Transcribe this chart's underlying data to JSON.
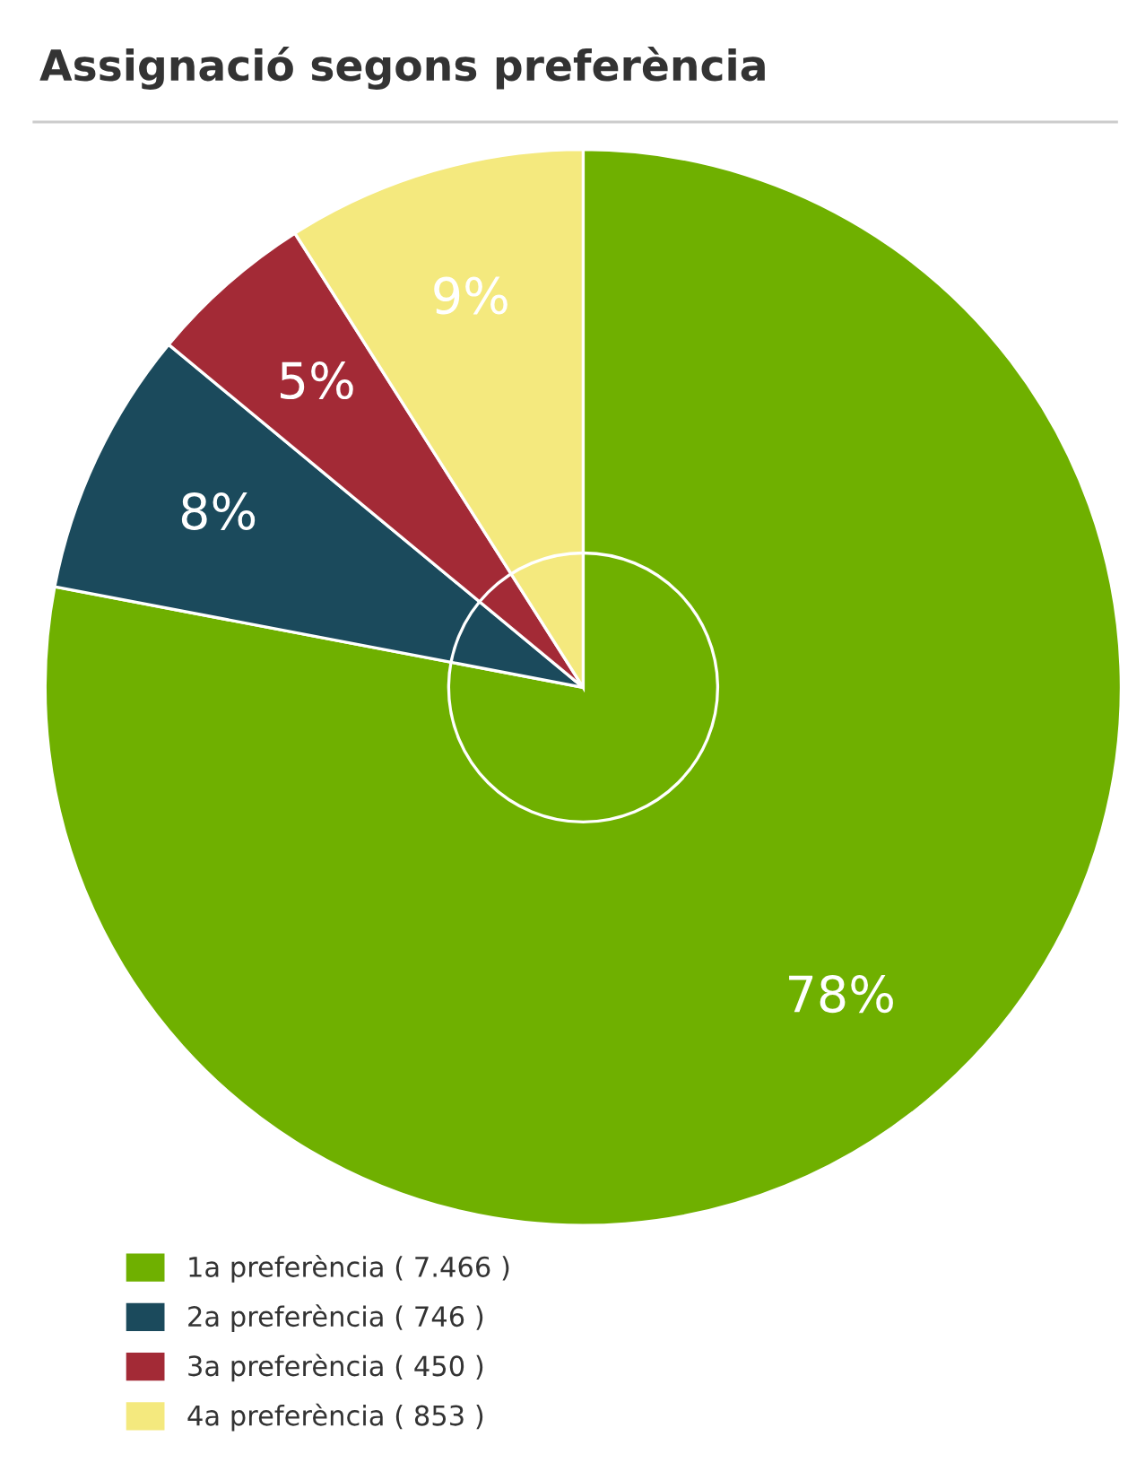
{
  "chart_data": {
    "type": "pie",
    "title": "Assignació segons preferència",
    "categories": [
      "1a preferència ( 7.466 )",
      "2a preferència ( 746 )",
      "3a preferència ( 450 )",
      "4a preferència ( 853 )"
    ],
    "values": [
      78,
      8,
      5,
      9
    ],
    "value_labels": [
      "78%",
      "8%",
      "5%",
      "9%"
    ],
    "colors": [
      "#6fb000",
      "#1b4a5c",
      "#a32a36",
      "#f4e97e"
    ],
    "legend": "bottom left"
  }
}
